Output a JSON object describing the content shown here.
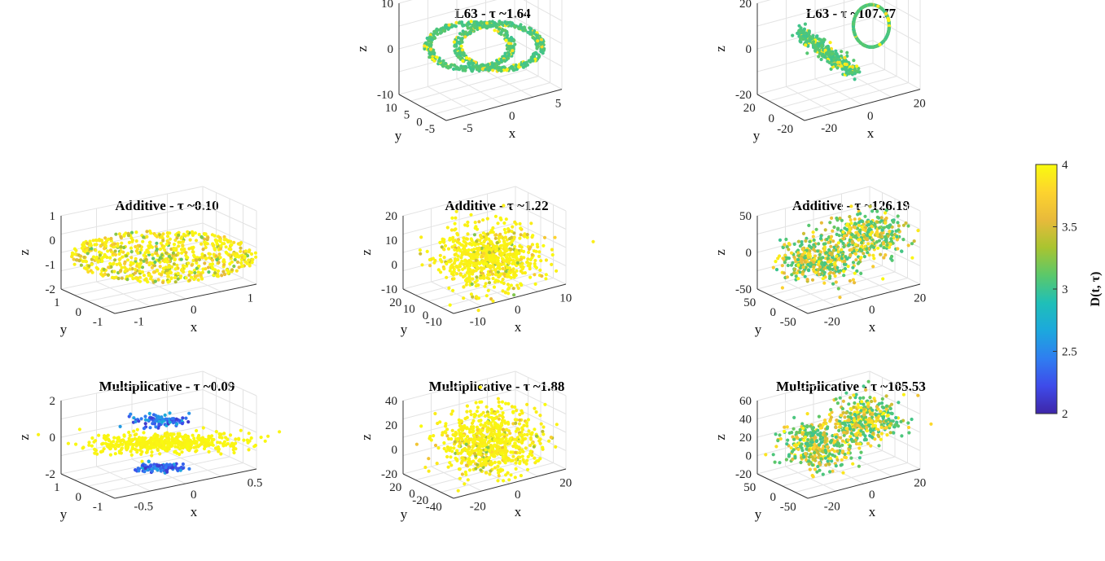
{
  "chart_data": [
    {
      "type": "scatter",
      "title": "L63 - τ ~1.64",
      "xlabel": "x",
      "ylabel": "y",
      "zlabel": "z",
      "x_ticks": [
        "-5",
        "0",
        "5"
      ],
      "y_ticks": [
        "10",
        "5",
        "0",
        "-5"
      ],
      "z_ticks": [
        "10",
        "0",
        "-10"
      ],
      "shape": "butterfly",
      "colors": "cyan"
    },
    {
      "type": "scatter",
      "title": "L63 - τ ~107.77",
      "xlabel": "x",
      "ylabel": "y",
      "zlabel": "z",
      "x_ticks": [
        "-20",
        "0",
        "20"
      ],
      "y_ticks": [
        "20",
        "0",
        "-20"
      ],
      "z_ticks": [
        "20",
        "0",
        "-20"
      ],
      "shape": "wing",
      "colors": "cyan"
    },
    {
      "type": "scatter",
      "title": "Additive - τ ~0.10",
      "xlabel": "x",
      "ylabel": "y",
      "zlabel": "z",
      "x_ticks": [
        "-1",
        "0",
        "1"
      ],
      "y_ticks": [
        "1",
        "0",
        "-1"
      ],
      "z_ticks": [
        "1",
        "0",
        "-1",
        "-2"
      ],
      "shape": "disk",
      "colors": "yellow-mix"
    },
    {
      "type": "scatter",
      "title": "Additive - τ ~1.22",
      "xlabel": "x",
      "ylabel": "y",
      "zlabel": "z",
      "x_ticks": [
        "-10",
        "0",
        "10"
      ],
      "y_ticks": [
        "20",
        "10",
        "0",
        "-10"
      ],
      "z_ticks": [
        "20",
        "10",
        "0",
        "-10"
      ],
      "shape": "blob",
      "colors": "yellow"
    },
    {
      "type": "scatter",
      "title": "Additive - τ ~126.19",
      "xlabel": "x",
      "ylabel": "y",
      "zlabel": "z",
      "x_ticks": [
        "-20",
        "0",
        "20"
      ],
      "y_ticks": [
        "50",
        "0",
        "-50"
      ],
      "z_ticks": [
        "50",
        "0",
        "-50"
      ],
      "shape": "lobes",
      "colors": "mixed"
    },
    {
      "type": "scatter",
      "title": "Multiplicative - τ ~0.09",
      "xlabel": "x",
      "ylabel": "y",
      "zlabel": "z",
      "x_ticks": [
        "-0.5",
        "0",
        "0.5"
      ],
      "y_ticks": [
        "1",
        "0",
        "-1"
      ],
      "z_ticks": [
        "2",
        "0",
        "-2"
      ],
      "shape": "flat",
      "colors": "yellow-blue"
    },
    {
      "type": "scatter",
      "title": "Multiplicative - τ ~1.88",
      "xlabel": "x",
      "ylabel": "y",
      "zlabel": "z",
      "x_ticks": [
        "-20",
        "0",
        "20"
      ],
      "y_ticks": [
        "20",
        "0",
        "-20",
        "-40"
      ],
      "z_ticks": [
        "40",
        "20",
        "0",
        "-20"
      ],
      "shape": "blob",
      "colors": "yellow"
    },
    {
      "type": "scatter",
      "title": "Multiplicative - τ ~105.53",
      "xlabel": "x",
      "ylabel": "y",
      "zlabel": "z",
      "x_ticks": [
        "-20",
        "0",
        "20"
      ],
      "y_ticks": [
        "50",
        "0",
        "-50"
      ],
      "z_ticks": [
        "60",
        "40",
        "20",
        "0",
        "-20"
      ],
      "shape": "lobes",
      "colors": "mixed"
    }
  ],
  "colorbar": {
    "label": "D(t, τ)",
    "min": 2,
    "max": 4,
    "ticks": [
      "4",
      "3.5",
      "3",
      "2.5",
      "2"
    ],
    "stops": [
      "#3e26a8",
      "#3e4bea",
      "#2f7ef0",
      "#1ca8dd",
      "#1fbfb8",
      "#5bc86a",
      "#a9c430",
      "#e8ba3b",
      "#fdd32e",
      "#f9fb0e"
    ]
  }
}
